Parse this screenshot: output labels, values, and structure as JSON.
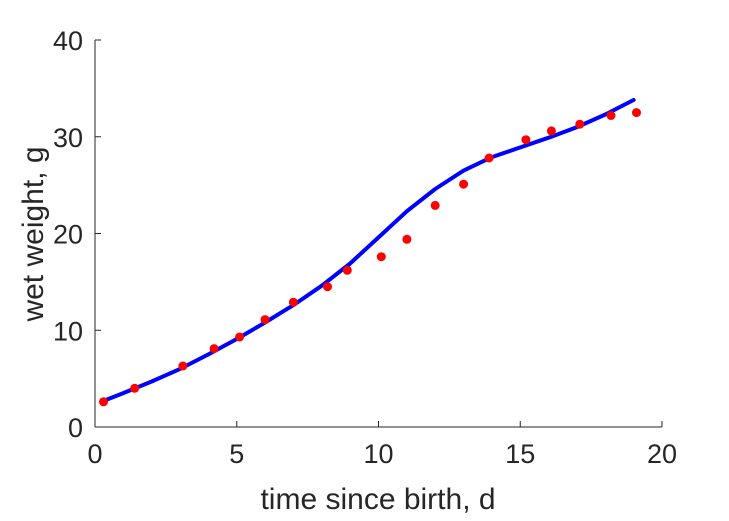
{
  "chart_data": {
    "type": "scatter",
    "title": "",
    "xlabel": "time since birth, d",
    "ylabel": "wet weight, g",
    "xlim": [
      0,
      20
    ],
    "ylim": [
      0,
      40
    ],
    "xticks": [
      0,
      5,
      10,
      15,
      20
    ],
    "yticks": [
      0,
      10,
      20,
      30,
      40
    ],
    "grid": false,
    "series": [
      {
        "kind": "points",
        "color": "#ff0000",
        "x": [
          0.3,
          1.4,
          3.1,
          4.2,
          5.1,
          6.0,
          7.0,
          8.2,
          8.9,
          10.1,
          11.0,
          12.0,
          13.0,
          13.9,
          15.2,
          16.1,
          17.1,
          18.2,
          19.1
        ],
        "y": [
          2.6,
          4.0,
          6.3,
          8.1,
          9.3,
          11.1,
          12.9,
          14.5,
          16.2,
          17.6,
          19.4,
          22.9,
          25.1,
          27.8,
          29.7,
          30.6,
          31.3,
          32.2,
          32.5
        ]
      },
      {
        "kind": "line",
        "color": "#0000ff",
        "x": [
          0.3,
          1.0,
          2.0,
          3.0,
          4.0,
          5.0,
          6.0,
          7.0,
          8.0,
          9.0,
          10.0,
          11.0,
          12.0,
          13.0,
          14.0,
          15.0,
          16.0,
          17.0,
          18.0,
          19.0
        ],
        "y": [
          2.7,
          3.5,
          4.7,
          6.0,
          7.5,
          9.1,
          10.8,
          12.6,
          14.6,
          16.9,
          19.6,
          22.3,
          24.6,
          26.5,
          27.9,
          28.9,
          29.9,
          31.0,
          32.3,
          33.8
        ]
      }
    ]
  }
}
